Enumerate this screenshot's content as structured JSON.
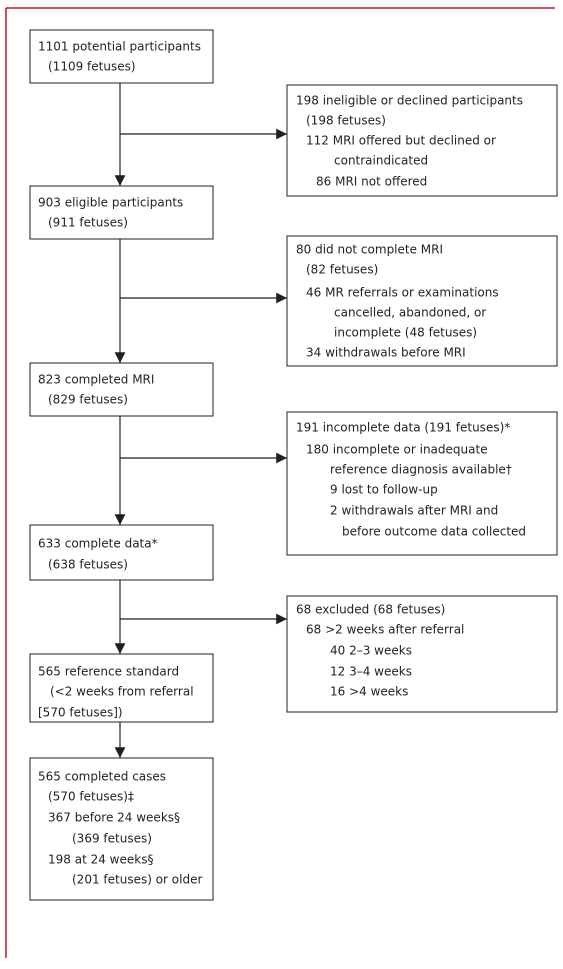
{
  "nodes": [
    {
      "lines": [
        "1101 potential participants",
        "(1109 fetuses)"
      ]
    },
    {
      "lines": [
        "198 ineligible or declined participants",
        "(198 fetuses)",
        "112 MRI offered but declined or",
        "contraindicated",
        "86 MRI not offered"
      ]
    },
    {
      "lines": [
        "903 eligible participants",
        "(911 fetuses)"
      ]
    },
    {
      "lines": [
        "80 did not complete MRI",
        "(82 fetuses)",
        "46 MR referrals or examinations",
        "cancelled, abandoned, or",
        "incomplete (48 fetuses)",
        "34 withdrawals before MRI"
      ]
    },
    {
      "lines": [
        "823 completed MRI",
        "(829 fetuses)"
      ]
    },
    {
      "lines": [
        "191 incomplete data (191 fetuses)*",
        "180 incomplete or inadequate",
        "reference diagnosis available†",
        "9 lost to follow-up",
        "2 withdrawals after MRI and",
        "before outcome data collected"
      ]
    },
    {
      "lines": [
        "633 complete data*",
        "(638 fetuses)"
      ]
    },
    {
      "lines": [
        "68 excluded (68 fetuses)",
        "68 >2 weeks after referral",
        "40 2–3 weeks",
        "12 3–4 weeks",
        "16 >4 weeks"
      ]
    },
    {
      "lines": [
        "565 reference standard",
        "(<2 weeks from referral",
        "[570 fetuses])"
      ]
    },
    {
      "lines": [
        "565 completed cases",
        "(570 fetuses)‡",
        "367 before 24 weeks§",
        "(369 fetuses)",
        "198 at 24 weeks§",
        "(201 fetuses) or older"
      ]
    }
  ]
}
